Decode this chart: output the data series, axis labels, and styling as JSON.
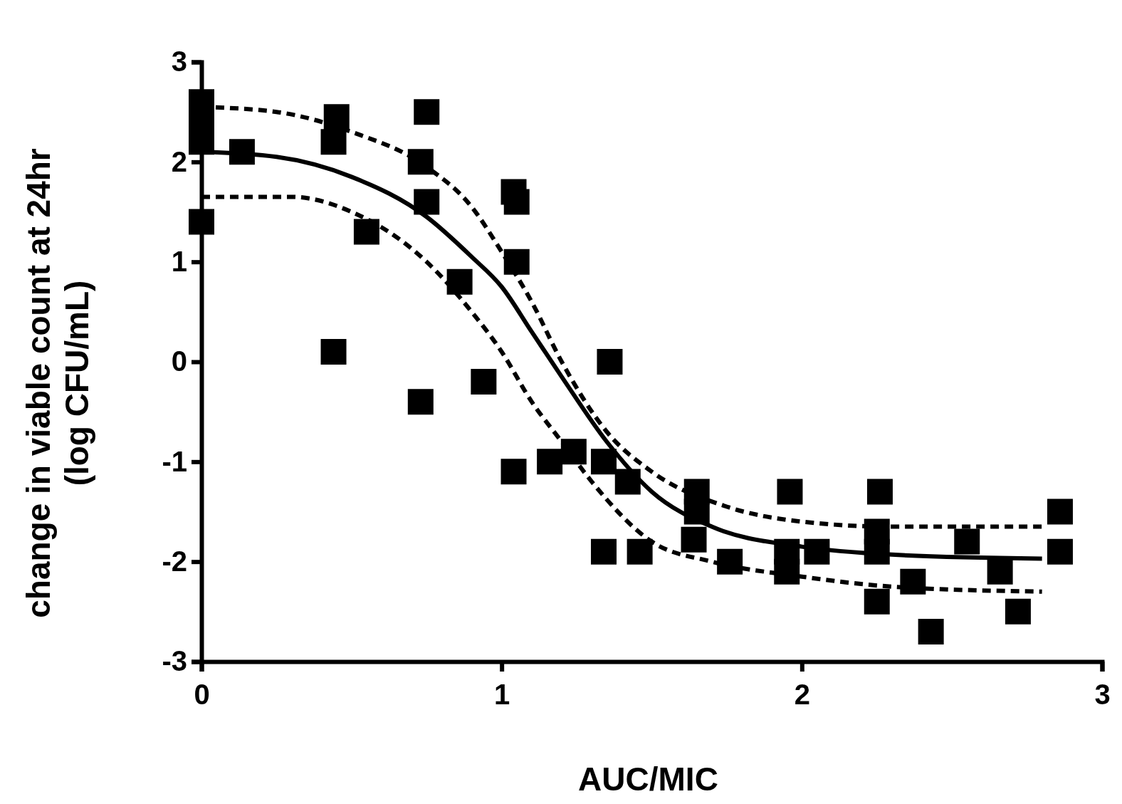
{
  "chart_data": {
    "type": "scatter",
    "xlabel": "AUC/MIC",
    "ylabel": "change in viable count at 24hr\n(log CFU/mL)",
    "xlim": [
      0,
      3
    ],
    "ylim": [
      -3,
      3
    ],
    "xticks": [
      0,
      1,
      2,
      3
    ],
    "yticks": [
      -3,
      -2,
      -1,
      0,
      1,
      2,
      3
    ],
    "grid": false,
    "series": [
      {
        "marker": "square",
        "color": "#000000",
        "x": [
          0,
          0,
          0,
          0,
          0.135,
          0.45,
          0.44,
          0.44,
          0.55,
          0.75,
          0.73,
          0.75,
          0.73,
          0.86,
          0.94,
          1.04,
          1.05,
          1.05,
          1.04,
          1.16,
          1.24,
          1.36,
          1.34,
          1.42,
          1.34,
          1.46,
          1.65,
          1.65,
          1.64,
          1.76,
          1.96,
          1.95,
          1.95,
          2.05,
          2.26,
          2.25,
          2.25,
          2.25,
          2.37,
          2.43,
          2.55,
          2.66,
          2.72,
          2.86,
          2.86
        ],
        "values": [
          2.6,
          2.35,
          2.2,
          1.4,
          2.1,
          2.45,
          2.2,
          0.1,
          1.3,
          2.5,
          2.0,
          1.6,
          -0.4,
          0.8,
          -0.2,
          1.7,
          1.6,
          1.0,
          -1.1,
          -1.0,
          -0.9,
          0.0,
          -1.0,
          -1.2,
          -1.9,
          -1.9,
          -1.3,
          -1.5,
          -1.78,
          -2.0,
          -1.3,
          -1.9,
          -2.1,
          -1.9,
          -1.3,
          -1.7,
          -1.9,
          -2.4,
          -2.2,
          -2.7,
          -1.8,
          -2.1,
          -2.5,
          -1.5,
          -1.9
        ]
      },
      {
        "type": "line",
        "line_style": "solid",
        "color": "#000000",
        "x": [
          0,
          0.25,
          0.5,
          0.75,
          0.9,
          1.0,
          1.1,
          1.2,
          1.35,
          1.5,
          1.7,
          2.0,
          2.3,
          2.8
        ],
        "values": [
          2.1,
          2.05,
          1.85,
          1.45,
          1.05,
          0.75,
          0.3,
          -0.15,
          -0.8,
          -1.3,
          -1.65,
          -1.85,
          -1.93,
          -1.97
        ]
      },
      {
        "type": "line",
        "line_style": "dashed",
        "color": "#000000",
        "x": [
          0,
          0.25,
          0.5,
          0.75,
          0.9,
          1.0,
          1.1,
          1.2,
          1.35,
          1.5,
          1.75,
          2.0,
          2.3,
          2.8
        ],
        "values": [
          2.55,
          2.5,
          2.3,
          1.95,
          1.55,
          1.1,
          0.6,
          0.0,
          -0.7,
          -1.1,
          -1.45,
          -1.6,
          -1.65,
          -1.65
        ]
      },
      {
        "type": "line",
        "line_style": "dashed",
        "color": "#000000",
        "x": [
          0,
          0.3,
          0.5,
          0.75,
          0.9,
          1.0,
          1.1,
          1.2,
          1.3,
          1.5,
          1.7,
          2.0,
          2.3,
          2.8
        ],
        "values": [
          1.65,
          1.65,
          1.5,
          1.0,
          0.5,
          0.1,
          -0.4,
          -0.8,
          -1.2,
          -1.8,
          -2.0,
          -2.15,
          -2.25,
          -2.3
        ]
      }
    ]
  }
}
